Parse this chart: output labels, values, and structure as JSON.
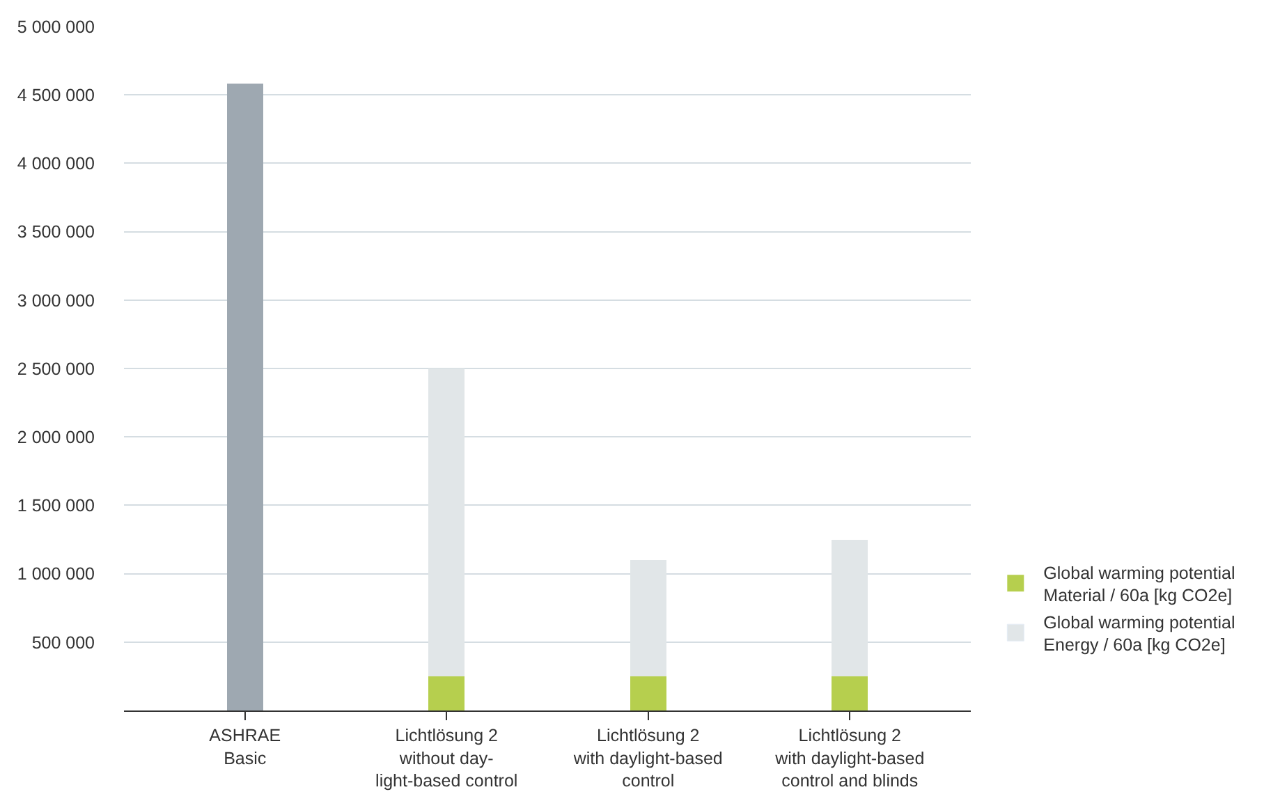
{
  "chart_data": {
    "type": "bar",
    "stacked": true,
    "categories": [
      "ASHRAE\nBasic",
      "Lichtlösung 2\nwithout day-\nlight-based control",
      "Lichtlösung 2\nwith daylight-based\ncontrol",
      "Lichtlösung 2\nwith daylight-based\ncontrol and blinds"
    ],
    "series": [
      {
        "name": "Global warming potential Material / 60a [kg CO2e]",
        "color": "#b6cf4e",
        "values": [
          null,
          250000,
          250000,
          250000
        ]
      },
      {
        "name": "Global warming potential Energy / 60a [kg CO2e]",
        "color": "#e1e6e8",
        "colors": [
          "#9ea8b1",
          "#e1e6e8",
          "#e1e6e8",
          "#e1e6e8"
        ],
        "values": [
          4580000,
          2250000,
          850000,
          1000000
        ]
      }
    ],
    "ylim": [
      0,
      5000000
    ],
    "yticks": [
      {
        "value": 500000,
        "label": "500 000"
      },
      {
        "value": 1000000,
        "label": "1 000 000"
      },
      {
        "value": 1500000,
        "label": "1 500 000"
      },
      {
        "value": 2000000,
        "label": "2 000 000"
      },
      {
        "value": 2500000,
        "label": "2 500 000"
      },
      {
        "value": 3000000,
        "label": "3 000 000"
      },
      {
        "value": 3500000,
        "label": "3 500 000"
      },
      {
        "value": 4000000,
        "label": "4 000 000"
      },
      {
        "value": 4500000,
        "label": "4 500 000"
      },
      {
        "value": 5000000,
        "label": "5 000 000"
      }
    ],
    "grid": "y",
    "legend": "right"
  }
}
